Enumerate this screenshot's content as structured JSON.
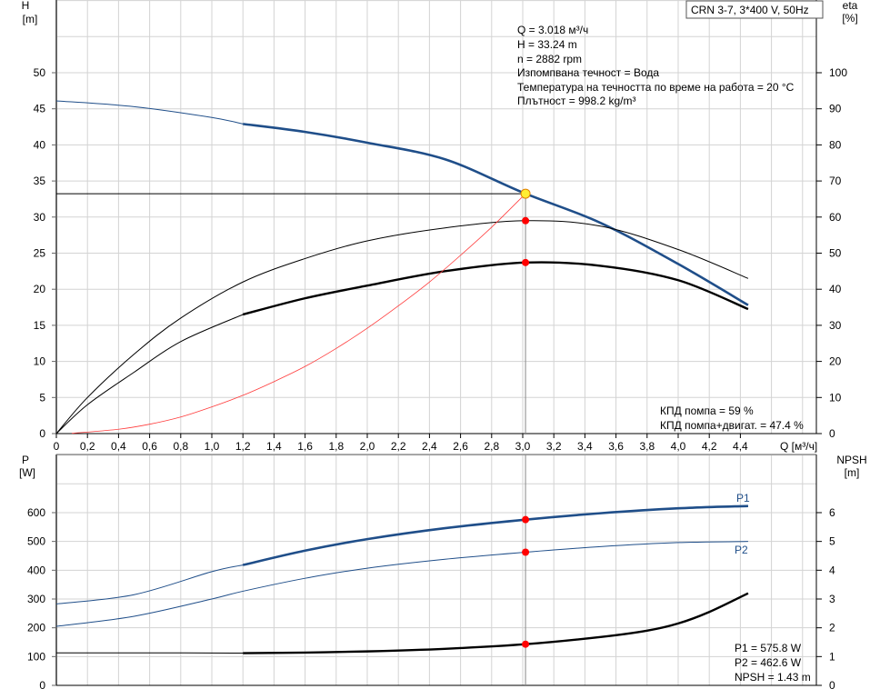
{
  "title_box": "CRN 3-7, 3*400 V, 50Hz",
  "info": [
    "Q = 3.018 м³/ч",
    "H = 33.24 m",
    "n = 2882 rpm",
    "Изпомпвана течност = Вода",
    "Температура на течността по време на работа = 20 °C",
    "Плътност = 998.2 kg/m³"
  ],
  "eff_info": [
    "КПД помпа = 59 %",
    "КПД помпа+двигат. = 47.4 %"
  ],
  "power_info": [
    "P1 = 575.8 W",
    "P2 = 462.6 W",
    "NPSH = 1.43 m"
  ],
  "colors": {
    "head": "#1f4e89",
    "eta": "#000000",
    "system": "#ff3b3b",
    "point": "#ff0000",
    "duty": "#ffee33",
    "grid": "#d3d3d3"
  },
  "chart_data": [
    {
      "type": "line",
      "xlabel": "Q [м³/ч]",
      "ylabel": "H\n[m]",
      "ylabel_left": [
        "H",
        "[m]"
      ],
      "ylabel_right": [
        "eta",
        "[%]"
      ],
      "xlim": [
        0,
        4.4
      ],
      "ylim": [
        0,
        50
      ],
      "ylim_right": [
        0,
        100
      ],
      "x_ticks": [
        "0",
        "0,2",
        "0,4",
        "0,6",
        "0,8",
        "1,0",
        "1,2",
        "1,4",
        "1,6",
        "1,8",
        "2,0",
        "2,2",
        "2,4",
        "2,6",
        "2,8",
        "3,0",
        "3,2",
        "3,4",
        "3,6",
        "3,8",
        "4,0",
        "4,2",
        "4,4"
      ],
      "y_ticks": [
        0,
        5,
        10,
        15,
        20,
        25,
        30,
        35,
        40,
        45,
        50
      ],
      "y_ticks_right": [
        0,
        10,
        20,
        30,
        40,
        50,
        60,
        70,
        80,
        90,
        100
      ],
      "grid": true,
      "duty_point": {
        "q": 3.018,
        "h": 33.24
      },
      "series": [
        {
          "key": "H",
          "axis": "left",
          "x": [
            0,
            0.5,
            1.0,
            1.2,
            1.6,
            2.0,
            2.5,
            3.0,
            3.5,
            4.0,
            4.45
          ],
          "y": [
            46.1,
            45.3,
            43.8,
            42.9,
            41.8,
            40.3,
            38.0,
            33.4,
            29.2,
            23.5,
            17.8
          ],
          "thick_from": 1.2
        },
        {
          "key": "eta_pump",
          "axis": "right",
          "x": [
            0,
            0.2,
            0.5,
            0.8,
            1.2,
            1.6,
            2.0,
            2.5,
            3.018,
            3.5,
            4.0,
            4.45
          ],
          "y": [
            0,
            10,
            22,
            32,
            42,
            48.5,
            53.4,
            57,
            59,
            57.5,
            51,
            43
          ],
          "thick_from": 99
        },
        {
          "key": "eta_total",
          "axis": "right",
          "x": [
            0,
            0.2,
            0.5,
            0.8,
            1.2,
            1.6,
            2.0,
            2.5,
            3.018,
            3.5,
            4.0,
            4.45
          ],
          "y": [
            0,
            8,
            17,
            25.5,
            33,
            37.5,
            41,
            45,
            47.4,
            46.5,
            42.5,
            34.5
          ],
          "thick_from": 1.2
        },
        {
          "key": "system",
          "axis": "left",
          "x": [
            0.1,
            0.4,
            0.6,
            0.8,
            1.0,
            1.2,
            1.4,
            1.6,
            1.8,
            2.0,
            2.2,
            2.4,
            2.6,
            2.8,
            3.018
          ],
          "y": [
            0.04,
            0.6,
            1.3,
            2.3,
            3.7,
            5.3,
            7.2,
            9.3,
            11.8,
            14.6,
            17.7,
            21.0,
            24.7,
            28.6,
            33.24
          ],
          "thick_from": 99
        }
      ],
      "markers": [
        {
          "x": 3.018,
          "y": 59,
          "axis": "right"
        },
        {
          "x": 3.018,
          "y": 47.4,
          "axis": "right"
        }
      ]
    },
    {
      "type": "line",
      "ylabel_left": [
        "P",
        "[W]"
      ],
      "ylabel_right": [
        "NPSH",
        "[m]"
      ],
      "xlim": [
        0,
        4.4
      ],
      "ylim": [
        0,
        700
      ],
      "ylim_right": [
        0,
        7
      ],
      "y_ticks": [
        0,
        100,
        200,
        300,
        400,
        500,
        600
      ],
      "y_ticks_right": [
        0,
        1,
        2,
        3,
        4,
        5,
        6
      ],
      "grid": true,
      "series": [
        {
          "key": "P1",
          "name": "P1",
          "axis": "left",
          "x": [
            0,
            0.5,
            1.0,
            1.2,
            1.6,
            2.0,
            2.5,
            3.018,
            3.5,
            4.0,
            4.45
          ],
          "y": [
            283,
            315,
            395,
            418,
            468,
            508,
            546,
            575.8,
            598,
            615,
            623
          ],
          "thick_from": 1.2
        },
        {
          "key": "P2",
          "name": "P2",
          "axis": "left",
          "x": [
            0,
            0.5,
            1.0,
            1.2,
            1.6,
            2.0,
            2.5,
            3.018,
            3.5,
            4.0,
            4.45
          ],
          "y": [
            205,
            240,
            300,
            327,
            372,
            407,
            438,
            462.6,
            482,
            496,
            500
          ],
          "thick_from": 99
        },
        {
          "key": "NPSH",
          "axis": "right",
          "x": [
            0,
            0.6,
            1.2,
            1.6,
            2.0,
            2.5,
            3.018,
            3.5,
            3.8,
            4.0,
            4.2,
            4.45
          ],
          "y": [
            1.13,
            1.13,
            1.12,
            1.14,
            1.18,
            1.27,
            1.43,
            1.68,
            1.9,
            2.15,
            2.55,
            3.2
          ],
          "thick_from": 1.2
        }
      ],
      "markers": [
        {
          "x": 3.018,
          "y": 575.8,
          "axis": "left"
        },
        {
          "x": 3.018,
          "y": 462.6,
          "axis": "left"
        },
        {
          "x": 3.018,
          "y": 1.43,
          "axis": "right"
        }
      ]
    }
  ]
}
